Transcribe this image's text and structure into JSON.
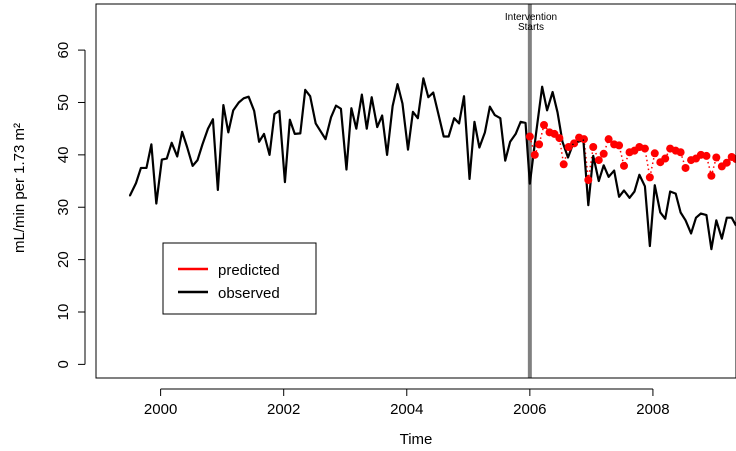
{
  "chart_data": {
    "type": "line",
    "xlabel": "Time",
    "ylabel": "mL/min per 1.73 m²",
    "xlim": [
      1998.95,
      2009.35
    ],
    "ylim": [
      -2.6,
      68.8
    ],
    "x_ticks": [
      2000,
      2002,
      2004,
      2006,
      2008
    ],
    "x_tick_labels": [
      "2000",
      "2002",
      "2004",
      "2006",
      "2008"
    ],
    "y_ticks": [
      0,
      10,
      20,
      30,
      40,
      50,
      60
    ],
    "y_tick_labels": [
      "0",
      "10",
      "20",
      "30",
      "40",
      "50",
      "60"
    ],
    "grid": false,
    "legend_position": "bottom-left",
    "legend": [
      {
        "label": "predicted",
        "color": "#ff0000"
      },
      {
        "label": "observed",
        "color": "#000000"
      }
    ],
    "annotation": {
      "lines": [
        "Intervention",
        "Starts"
      ],
      "x": 2006,
      "color": "#808080"
    },
    "series": [
      {
        "name": "observed",
        "color": "#000000",
        "points": [
          [
            1999.5,
            32.2
          ],
          [
            1999.6,
            34.6
          ],
          [
            1999.68,
            37.5
          ],
          [
            1999.77,
            37.5
          ],
          [
            1999.85,
            42.0
          ],
          [
            1999.93,
            30.7
          ],
          [
            2000.02,
            39.1
          ],
          [
            2000.1,
            39.3
          ],
          [
            2000.18,
            42.3
          ],
          [
            2000.27,
            39.7
          ],
          [
            2000.35,
            44.4
          ],
          [
            2000.43,
            41.5
          ],
          [
            2000.52,
            37.9
          ],
          [
            2000.6,
            39.0
          ],
          [
            2000.68,
            42.0
          ],
          [
            2000.77,
            45.0
          ],
          [
            2000.85,
            46.8
          ],
          [
            2000.93,
            33.3
          ],
          [
            2001.02,
            49.5
          ],
          [
            2001.1,
            44.3
          ],
          [
            2001.18,
            48.5
          ],
          [
            2001.27,
            50.0
          ],
          [
            2001.35,
            50.8
          ],
          [
            2001.43,
            51.1
          ],
          [
            2001.52,
            48.4
          ],
          [
            2001.6,
            42.5
          ],
          [
            2001.68,
            44.0
          ],
          [
            2001.77,
            40.0
          ],
          [
            2001.85,
            47.8
          ],
          [
            2001.93,
            48.4
          ],
          [
            2002.02,
            34.8
          ],
          [
            2002.1,
            46.7
          ],
          [
            2002.18,
            44.0
          ],
          [
            2002.27,
            44.1
          ],
          [
            2002.35,
            52.4
          ],
          [
            2002.43,
            51.2
          ],
          [
            2002.52,
            46.0
          ],
          [
            2002.6,
            44.5
          ],
          [
            2002.68,
            43.0
          ],
          [
            2002.77,
            47.2
          ],
          [
            2002.85,
            49.4
          ],
          [
            2002.93,
            48.8
          ],
          [
            2003.02,
            37.2
          ],
          [
            2003.1,
            48.9
          ],
          [
            2003.18,
            45.0
          ],
          [
            2003.27,
            51.5
          ],
          [
            2003.35,
            45.0
          ],
          [
            2003.43,
            51.0
          ],
          [
            2003.52,
            45.3
          ],
          [
            2003.6,
            47.5
          ],
          [
            2003.68,
            40.0
          ],
          [
            2003.77,
            49.3
          ],
          [
            2003.85,
            53.5
          ],
          [
            2003.93,
            49.8
          ],
          [
            2004.02,
            41.0
          ],
          [
            2004.1,
            48.2
          ],
          [
            2004.18,
            47.0
          ],
          [
            2004.27,
            54.6
          ],
          [
            2004.35,
            51.0
          ],
          [
            2004.43,
            51.9
          ],
          [
            2004.52,
            47.5
          ],
          [
            2004.6,
            43.5
          ],
          [
            2004.68,
            43.5
          ],
          [
            2004.77,
            47.0
          ],
          [
            2004.85,
            46.0
          ],
          [
            2004.93,
            51.2
          ],
          [
            2005.02,
            35.4
          ],
          [
            2005.1,
            46.3
          ],
          [
            2005.18,
            41.4
          ],
          [
            2005.27,
            44.3
          ],
          [
            2005.35,
            49.2
          ],
          [
            2005.43,
            47.6
          ],
          [
            2005.52,
            47.0
          ],
          [
            2005.6,
            38.9
          ],
          [
            2005.68,
            42.5
          ],
          [
            2005.77,
            44.0
          ],
          [
            2005.85,
            46.3
          ],
          [
            2005.93,
            46.1
          ],
          [
            2006.0,
            34.5
          ],
          [
            2006.1,
            44.0
          ],
          [
            2006.2,
            53.0
          ],
          [
            2006.28,
            48.5
          ],
          [
            2006.37,
            52.0
          ],
          [
            2006.45,
            48.1
          ],
          [
            2006.53,
            42.5
          ],
          [
            2006.62,
            39.5
          ],
          [
            2006.7,
            42.0
          ],
          [
            2006.78,
            42.5
          ],
          [
            2006.87,
            42.8
          ],
          [
            2006.95,
            30.4
          ],
          [
            2007.03,
            39.8
          ],
          [
            2007.12,
            35.0
          ],
          [
            2007.2,
            38.0
          ],
          [
            2007.28,
            35.8
          ],
          [
            2007.37,
            37.0
          ],
          [
            2007.45,
            32.0
          ],
          [
            2007.53,
            33.2
          ],
          [
            2007.62,
            31.8
          ],
          [
            2007.7,
            33.0
          ],
          [
            2007.78,
            36.2
          ],
          [
            2007.87,
            34.0
          ],
          [
            2007.95,
            22.6
          ],
          [
            2008.03,
            34.2
          ],
          [
            2008.12,
            29.0
          ],
          [
            2008.2,
            27.8
          ],
          [
            2008.28,
            33.0
          ],
          [
            2008.37,
            32.6
          ],
          [
            2008.45,
            29.0
          ],
          [
            2008.53,
            27.5
          ],
          [
            2008.62,
            25.0
          ],
          [
            2008.7,
            28.0
          ],
          [
            2008.78,
            28.8
          ],
          [
            2008.87,
            28.5
          ],
          [
            2008.95,
            22.0
          ],
          [
            2009.03,
            27.5
          ],
          [
            2009.12,
            24.0
          ],
          [
            2009.2,
            28.0
          ],
          [
            2009.28,
            28.0
          ],
          [
            2009.35,
            26.5
          ]
        ]
      },
      {
        "name": "predicted",
        "color": "#ff0000",
        "points": [
          [
            2006.0,
            43.5
          ],
          [
            2006.08,
            40.0
          ],
          [
            2006.15,
            42.0
          ],
          [
            2006.23,
            45.7
          ],
          [
            2006.32,
            44.3
          ],
          [
            2006.4,
            44.0
          ],
          [
            2006.48,
            43.2
          ],
          [
            2006.55,
            38.2
          ],
          [
            2006.63,
            41.5
          ],
          [
            2006.72,
            42.2
          ],
          [
            2006.8,
            43.3
          ],
          [
            2006.88,
            43.0
          ],
          [
            2006.95,
            35.2
          ],
          [
            2007.03,
            41.5
          ],
          [
            2007.12,
            39.0
          ],
          [
            2007.2,
            40.2
          ],
          [
            2007.28,
            43.0
          ],
          [
            2007.37,
            42.0
          ],
          [
            2007.45,
            41.8
          ],
          [
            2007.53,
            37.9
          ],
          [
            2007.62,
            40.5
          ],
          [
            2007.7,
            40.8
          ],
          [
            2007.78,
            41.5
          ],
          [
            2007.87,
            41.2
          ],
          [
            2007.95,
            35.7
          ],
          [
            2008.03,
            40.3
          ],
          [
            2008.12,
            38.6
          ],
          [
            2008.2,
            39.3
          ],
          [
            2008.28,
            41.2
          ],
          [
            2008.37,
            40.8
          ],
          [
            2008.45,
            40.5
          ],
          [
            2008.53,
            37.5
          ],
          [
            2008.62,
            39.0
          ],
          [
            2008.7,
            39.3
          ],
          [
            2008.78,
            40.0
          ],
          [
            2008.87,
            39.8
          ],
          [
            2008.95,
            36.0
          ],
          [
            2009.03,
            39.5
          ],
          [
            2009.12,
            37.8
          ],
          [
            2009.2,
            38.5
          ],
          [
            2009.28,
            39.6
          ],
          [
            2009.35,
            39.2
          ]
        ]
      }
    ]
  }
}
